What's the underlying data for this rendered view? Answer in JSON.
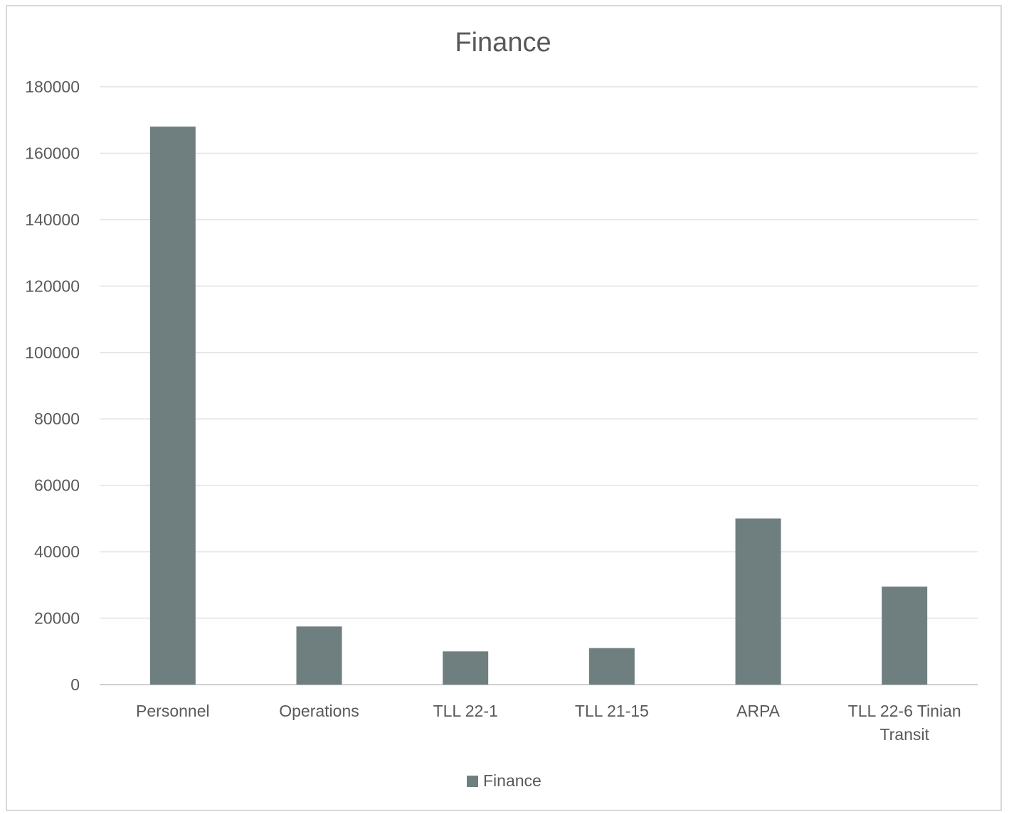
{
  "chart_data": {
    "type": "bar",
    "title": "Finance",
    "xlabel": "",
    "ylabel": "",
    "categories": [
      "Personnel",
      "Operations",
      "TLL 22-1",
      "TLL 21-15",
      "ARPA",
      "TLL 22-6 Tinian Transit"
    ],
    "series": [
      {
        "name": "Finance",
        "values": [
          168000,
          17500,
          10000,
          11000,
          50000,
          29500
        ],
        "color": "#6f7f80"
      }
    ],
    "ylim": [
      0,
      180000
    ],
    "yticks": [
      0,
      20000,
      40000,
      60000,
      80000,
      100000,
      120000,
      140000,
      160000,
      180000
    ],
    "grid": true,
    "legend": "bottom"
  }
}
